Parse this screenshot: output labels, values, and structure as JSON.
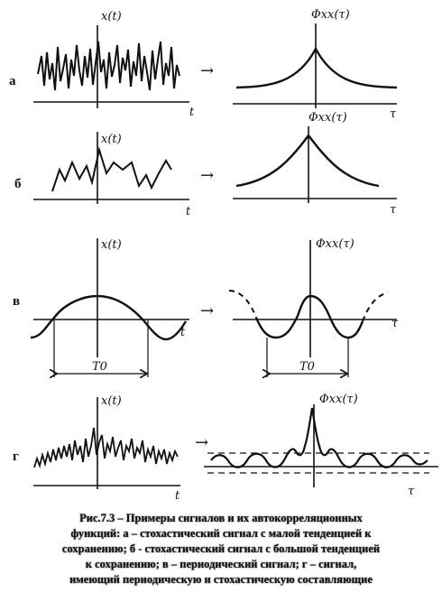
{
  "rows": [
    {
      "label": "а",
      "left_y_label": "x(t)",
      "left_x_label": "t",
      "right_y_label": "Φxx(τ)",
      "right_x_label": "τ"
    },
    {
      "label": "б",
      "left_y_label": "x(t)",
      "left_x_label": "t",
      "right_y_label": "Φxx(τ)",
      "right_x_label": "τ"
    },
    {
      "label": "в",
      "left_y_label": "x(t)",
      "left_x_label": "t",
      "right_y_label": "Φxx(τ)",
      "right_x_label": "τ",
      "period_label_left": "T0",
      "period_label_right": "T0"
    },
    {
      "label": "г",
      "left_y_label": "x(t)",
      "left_x_label": "t",
      "right_y_label": "Φxx(τ)",
      "right_x_label": "τ"
    }
  ],
  "arrow_symbol": "→",
  "caption": {
    "line1": "Рис.7.3 – Примеры сигналов и их автокорреляционных",
    "line2": "функций: а – стохастический сигнал с малой тенденцией к",
    "line3": "сохранению; б - стохастический сигнал с большой тенденцией",
    "line4": "к сохранению; в – периодический сигнал; г – сигнал,",
    "line5": "имеющий периодическую и стохастическую  составляющие"
  }
}
